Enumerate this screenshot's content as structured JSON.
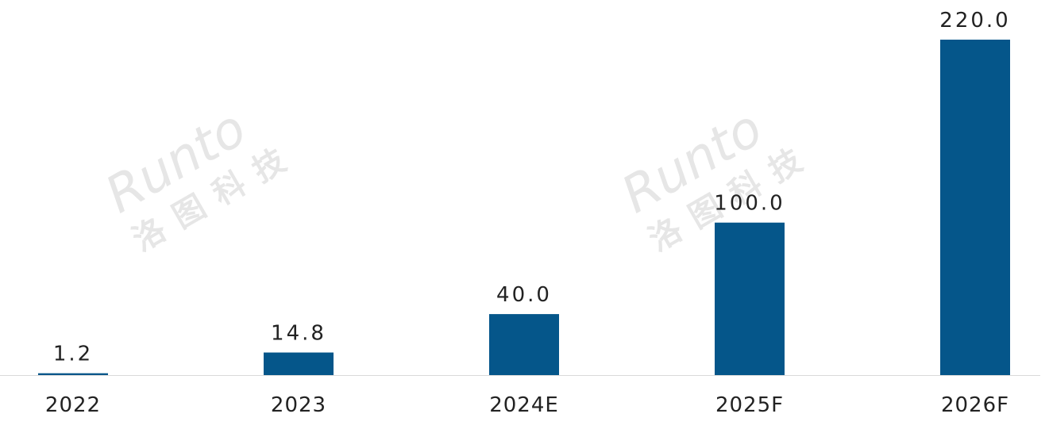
{
  "chart_data": {
    "type": "bar",
    "categories": [
      "2022",
      "2023",
      "2024E",
      "2025F",
      "2026F"
    ],
    "values": [
      1.2,
      14.8,
      40,
      100,
      220
    ],
    "value_labels": [
      "1.2",
      "14.8",
      "40.0",
      "100.0",
      "220.0"
    ],
    "color": "#05568a",
    "ylim": [
      0,
      220
    ],
    "watermark": [
      "Runto",
      "洛图科技"
    ]
  }
}
